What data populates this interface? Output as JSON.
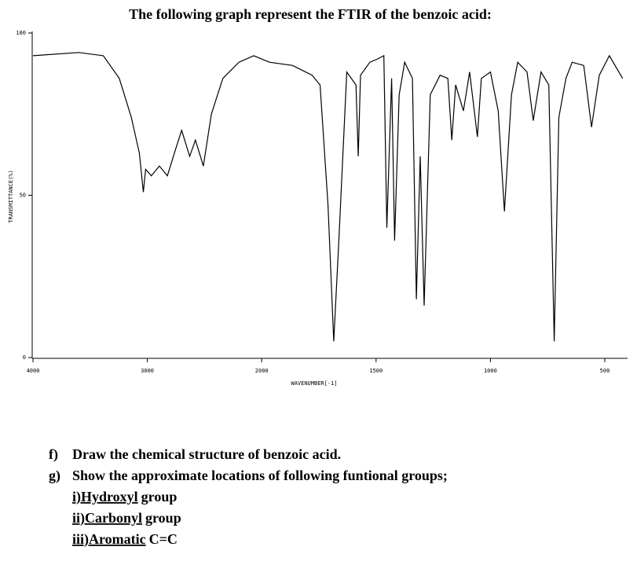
{
  "header": {
    "title": "The following graph represent the FTIR of the benzoic acid:"
  },
  "chart_data": {
    "type": "line",
    "x_label": "WAVENUMBER[-1]",
    "y_label": "TRANSMITTANCE(%)",
    "x": [
      4000,
      3600,
      3385,
      3245,
      3140,
      3070,
      3035,
      3015,
      2965,
      2895,
      2825,
      2755,
      2700,
      2630,
      2580,
      2510,
      2440,
      2340,
      2200,
      2070,
      1966,
      1865,
      1780,
      1745,
      1710,
      1685,
      1662,
      1628,
      1588,
      1578,
      1568,
      1527,
      1493,
      1466,
      1453,
      1432,
      1419,
      1399,
      1375,
      1341,
      1324,
      1307,
      1290,
      1263,
      1220,
      1186,
      1169,
      1152,
      1118,
      1091,
      1057,
      1040,
      1000,
      966,
      939,
      908,
      881,
      840,
      813,
      779,
      745,
      721,
      701,
      670,
      643,
      592,
      558,
      524,
      480,
      422
    ],
    "values": [
      93,
      94,
      93,
      86,
      74,
      63,
      51,
      58,
      56,
      59,
      56,
      64,
      70,
      62,
      67,
      59,
      75,
      86,
      91,
      93,
      91,
      90,
      87,
      84,
      47,
      5,
      37,
      88,
      84,
      62,
      87,
      91,
      92,
      93,
      40,
      86,
      36,
      81,
      91,
      86,
      18,
      62,
      16,
      81,
      87,
      86,
      67,
      84,
      76,
      88,
      68,
      86,
      88,
      76,
      45,
      81,
      91,
      88,
      73,
      88,
      84,
      5,
      74,
      86,
      91,
      90,
      71,
      87,
      93,
      86
    ],
    "color": "#000000",
    "xlim": [
      4000,
      400
    ],
    "xticks": [
      4000,
      3000,
      2000,
      1500,
      1000,
      500
    ],
    "ylim": [
      0,
      100
    ],
    "yticks": [
      0,
      50,
      100
    ]
  },
  "questions": [
    {
      "label": "f)",
      "text": "Draw the chemical structure of benzoic acid."
    },
    {
      "label": "g)",
      "text": "Show the approximate locations of following funtional groups;",
      "items": [
        {
          "underlined": "i)Hydroxyl",
          "rest": "group"
        },
        {
          "underlined": "ii)Carbonyl",
          "rest": "group"
        },
        {
          "underlined": "iii)Aromatic",
          "rest": "C=C"
        }
      ]
    }
  ]
}
